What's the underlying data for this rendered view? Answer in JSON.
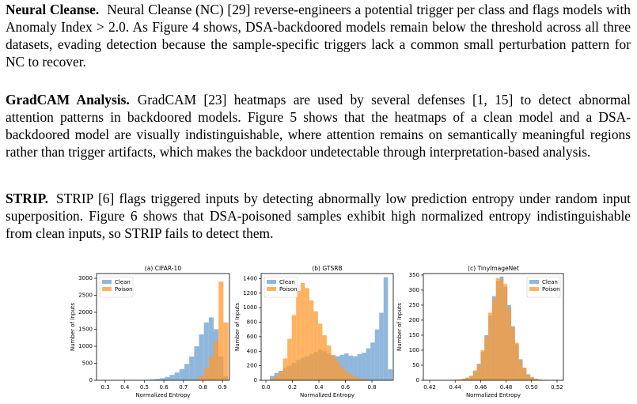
{
  "paragraphs": [
    {
      "heading": "Neural Cleanse.",
      "text": "Neural Cleanse (NC) [29] reverse-engineers a potential trigger per class and flags models with Anomaly Index > 2.0. As Figure 4 shows, DSA-backdoored models remain below the threshold across all three datasets, evading detection because the sample-specific triggers lack a common small perturbation pattern for NC to recover."
    },
    {
      "heading": "GradCAM Analysis.",
      "text": "GradCAM [23] heatmaps are used by several defenses [1, 15] to detect abnormal attention patterns in backdoored models. Figure 5 shows that the heatmaps of a clean model and a DSA-backdoored model are visually indistinguishable, where attention remains on semantically meaningful regions rather than trigger artifacts, which makes the backdoor undetectable through interpretation-based analysis."
    },
    {
      "heading": "STRIP.",
      "text": "STRIP [6] flags triggered inputs by detecting abnormally low prediction entropy under random input superposition. Figure 6 shows that DSA-poisoned samples exhibit high normalized entropy indistinguishable from clean inputs, so STRIP fails to detect them."
    }
  ],
  "chart_data": [
    {
      "type": "histogram",
      "title": "(a) CIFAR-10",
      "x_label": "Normalized Entropy",
      "y_label": "Number of Inputs",
      "bins": [
        0.28,
        0.305,
        0.33,
        0.355,
        0.38,
        0.405,
        0.43,
        0.455,
        0.48,
        0.505,
        0.53,
        0.555,
        0.58,
        0.605,
        0.63,
        0.655,
        0.68,
        0.705,
        0.73,
        0.755,
        0.78,
        0.805,
        0.83,
        0.855,
        0.88,
        0.905,
        0.93
      ],
      "series": [
        {
          "name": "Clean",
          "color": "#6a9fcf",
          "values": [
            2,
            1,
            2,
            3,
            3,
            4,
            5,
            8,
            10,
            15,
            25,
            40,
            60,
            100,
            160,
            230,
            330,
            480,
            700,
            1000,
            1350,
            1700,
            1850,
            1500,
            700,
            120
          ]
        },
        {
          "name": "Poison",
          "color": "#ff9a2e",
          "values": [
            0,
            0,
            0,
            0,
            0,
            0,
            0,
            0,
            0,
            0,
            0,
            0,
            0,
            0,
            0,
            0,
            1,
            3,
            10,
            30,
            120,
            350,
            700,
            1150,
            2900,
            1700
          ]
        }
      ],
      "xlim": [
        0.255,
        0.936
      ],
      "xticks": [
        0.3,
        0.4,
        0.5,
        0.6,
        0.7,
        0.8,
        0.9
      ],
      "ylim": [
        0,
        3140
      ],
      "yticks": [
        0,
        500,
        1000,
        1500,
        2000,
        2500,
        3000
      ],
      "legend": "upper left"
    },
    {
      "type": "histogram",
      "title": "(b) GTSRB",
      "x_label": "Normalized Entropy",
      "y_label": "Number of Inputs",
      "bins": [
        0.03,
        0.063,
        0.096,
        0.129,
        0.162,
        0.195,
        0.228,
        0.261,
        0.294,
        0.327,
        0.36,
        0.393,
        0.426,
        0.459,
        0.492,
        0.525,
        0.558,
        0.591,
        0.624,
        0.657,
        0.69,
        0.723,
        0.756,
        0.789,
        0.822,
        0.855,
        0.888,
        0.921,
        0.954
      ],
      "series": [
        {
          "name": "Clean",
          "color": "#6a9fcf",
          "values": [
            60,
            100,
            130,
            170,
            200,
            240,
            280,
            310,
            330,
            360,
            390,
            420,
            400,
            370,
            340,
            330,
            350,
            370,
            340,
            330,
            360,
            380,
            440,
            520,
            700,
            930,
            1420,
            150
          ]
        },
        {
          "name": "Poison",
          "color": "#ff9a2e",
          "values": [
            20,
            60,
            130,
            300,
            570,
            900,
            1230,
            1340,
            1270,
            1100,
            950,
            780,
            620,
            480,
            350,
            260,
            180,
            120,
            80,
            50,
            30,
            20,
            10,
            5,
            3,
            2,
            1,
            0
          ]
        }
      ],
      "xlim": [
        -0.036,
        0.961
      ],
      "xticks": [
        {
          "value": 0,
          "label": "0.0"
        },
        0.2,
        0.4,
        0.6,
        0.8
      ],
      "ylim": [
        0,
        1470
      ],
      "yticks": [
        0,
        200,
        400,
        600,
        800,
        1000,
        1200,
        1400
      ],
      "legend": "upper left"
    },
    {
      "type": "histogram",
      "title": "(c) TinyImageNet",
      "x_label": "Normalized Entropy",
      "y_label": "Number of Inputs",
      "bins": [
        0.436,
        0.439,
        0.442,
        0.445,
        0.448,
        0.451,
        0.454,
        0.457,
        0.46,
        0.463,
        0.466,
        0.469,
        0.472,
        0.475,
        0.478,
        0.481,
        0.484,
        0.487,
        0.49,
        0.493,
        0.496,
        0.499,
        0.502,
        0.505,
        0.508,
        0.511,
        0.514
      ],
      "series": [
        {
          "name": "Clean",
          "color": "#6a9fcf",
          "values": [
            1,
            1,
            2,
            4,
            8,
            15,
            30,
            55,
            95,
            150,
            215,
            280,
            330,
            345,
            310,
            250,
            180,
            120,
            70,
            40,
            20,
            10,
            5,
            2,
            1,
            1
          ]
        },
        {
          "name": "Poison",
          "color": "#ff9a2e",
          "values": [
            1,
            2,
            3,
            5,
            9,
            14,
            33,
            50,
            100,
            145,
            225,
            270,
            340,
            335,
            320,
            240,
            175,
            125,
            65,
            42,
            18,
            11,
            4,
            3,
            1,
            0
          ]
        }
      ],
      "xlim": [
        0.415,
        0.525
      ],
      "xticks": [
        0.42,
        0.44,
        0.46,
        0.48,
        {
          "value": 0.5,
          "label": "0.50"
        },
        0.52
      ],
      "ylim": [
        0,
        355
      ],
      "yticks": [
        0,
        50,
        100,
        150,
        200,
        250,
        300,
        350
      ],
      "legend": "upper right"
    }
  ]
}
